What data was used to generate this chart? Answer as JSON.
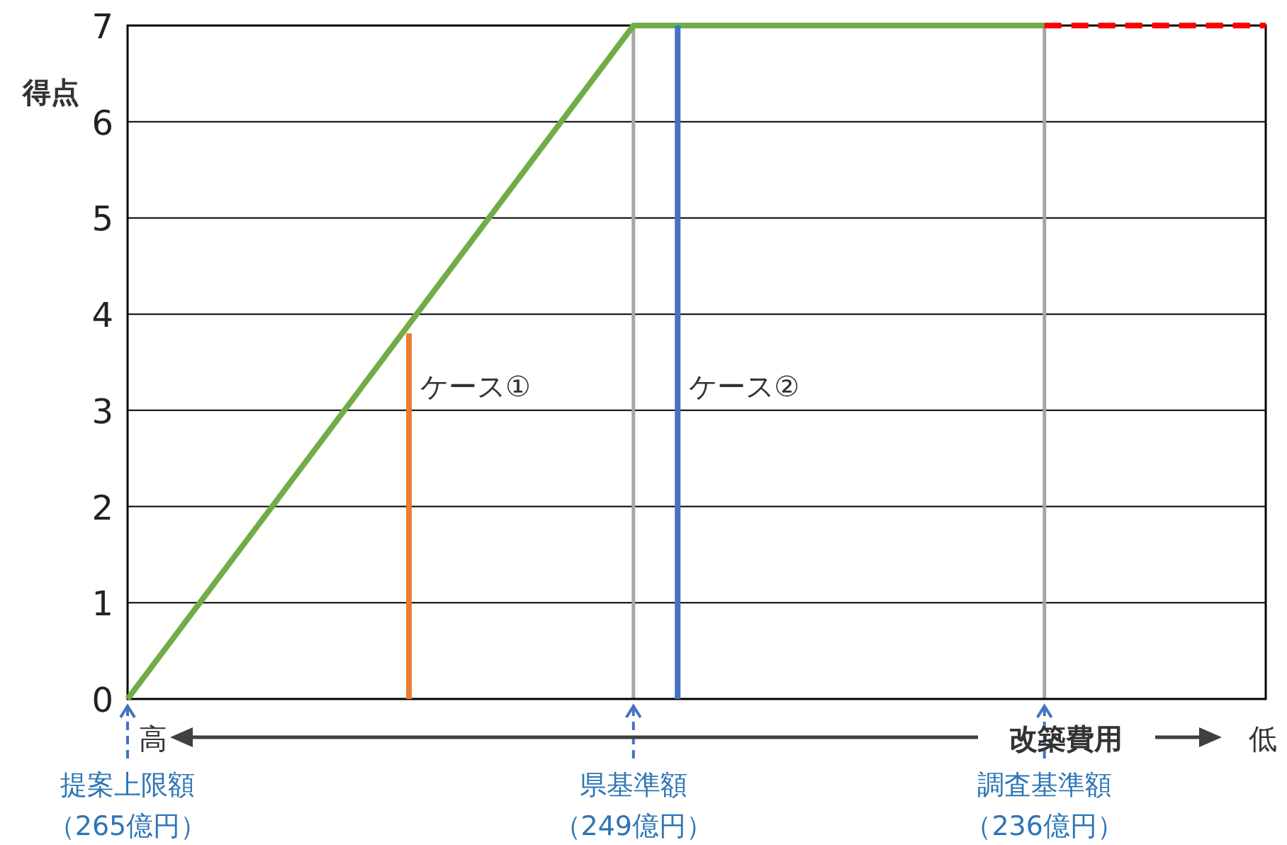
{
  "chart_data": {
    "type": "line",
    "xlabel": "改築費用",
    "ylabel": "得点",
    "xlim": [
      265,
      229
    ],
    "ylim": [
      0,
      7
    ],
    "xticks": [
      {
        "value": 265,
        "label": "提案上限額（265億円）"
      },
      {
        "value": 249,
        "label": "県基準額（249億円）"
      },
      {
        "value": 236,
        "label": "調査基準額（236億円）"
      }
    ],
    "yticks": [
      0,
      1,
      2,
      3,
      4,
      5,
      6,
      7
    ],
    "grid": "y",
    "ref_lines": [
      {
        "axis": "x",
        "value": 249,
        "color": "#a6a6a6"
      },
      {
        "axis": "x",
        "value": 236,
        "color": "#a6a6a6"
      }
    ],
    "annotations": [
      "高",
      "低"
    ],
    "series": [
      {
        "x": [
          265,
          249,
          236
        ],
        "values": [
          0,
          7,
          7
        ],
        "color": "#70ad47",
        "line_style": "solid"
      },
      {
        "x": [
          236,
          229
        ],
        "values": [
          7,
          7
        ],
        "color": "#ff0000",
        "line_style": "dashed"
      },
      {
        "name": "ケース①",
        "x": [
          256.1,
          256.1
        ],
        "values": [
          0,
          3.8
        ],
        "color": "#ed7d31",
        "line_style": "solid"
      },
      {
        "name": "ケース②",
        "x": [
          247.6,
          247.6
        ],
        "values": [
          0,
          7
        ],
        "color": "#4472c4",
        "line_style": "solid"
      }
    ]
  }
}
